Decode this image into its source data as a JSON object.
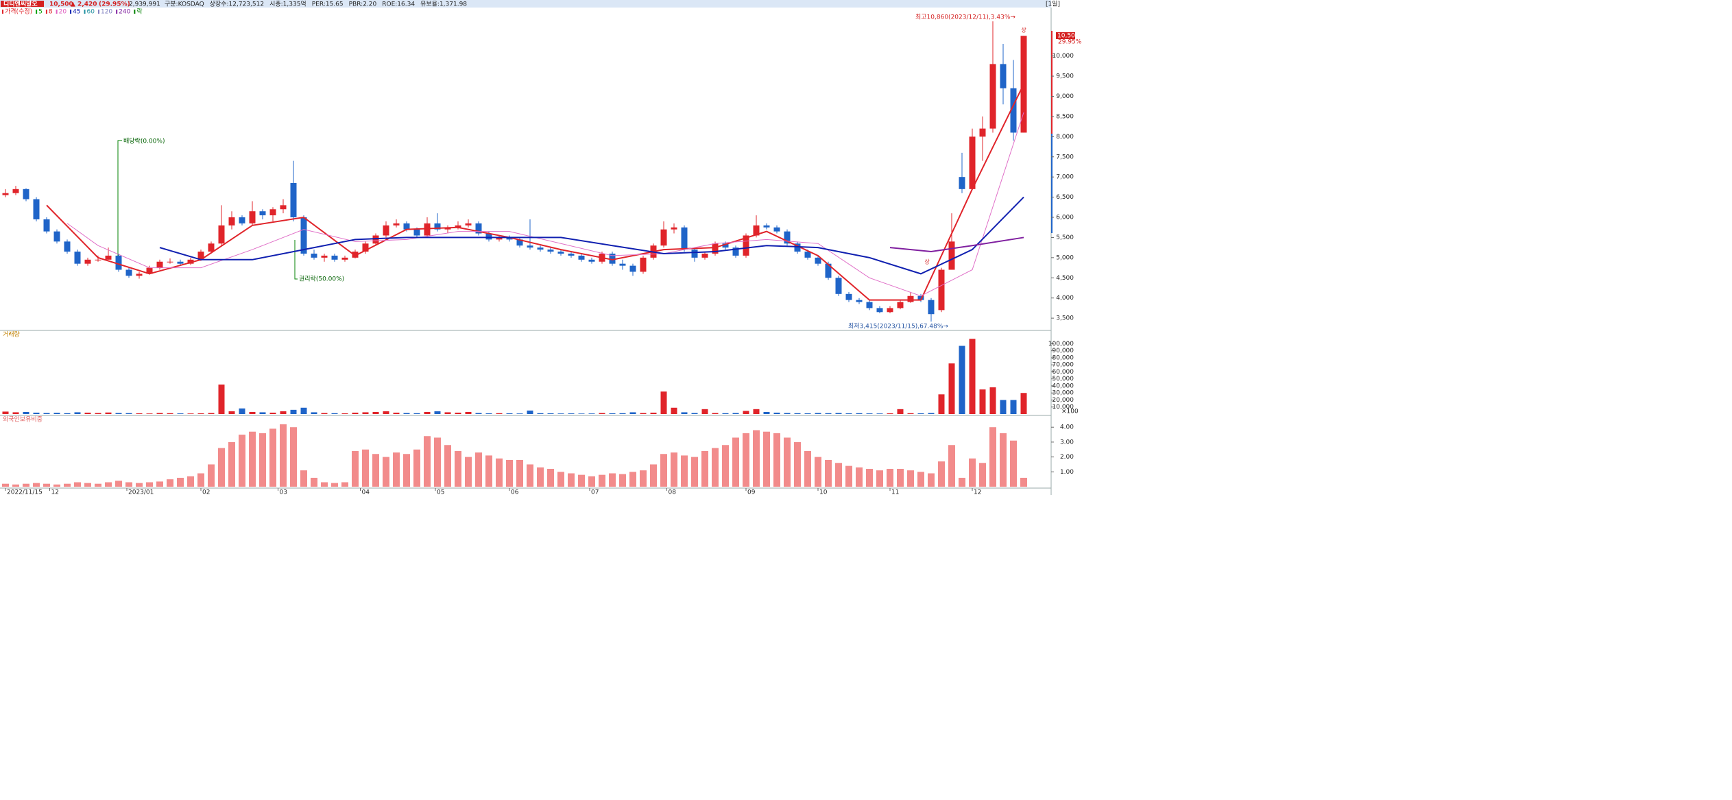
{
  "chart_data": {
    "type": "candlestick",
    "header": {
      "name": "디티앤씨알오",
      "price": "10,500",
      "change": "▲ 2,420",
      "change_pct": "(29.95%)",
      "volume": "2,939,991",
      "items": [
        "구분:KOSDAQ",
        "상장수:12,723,512",
        "시총:1,335억",
        "PER:15.65",
        "PBR:2.20",
        "ROE:16.34",
        "유보율:1,371.98"
      ],
      "period": "[1일]"
    },
    "legend": [
      {
        "name": "가격(수정)",
        "color": "#e0242a"
      },
      {
        "name": "5",
        "color": "#00a000"
      },
      {
        "name": "8",
        "color": "#e0242a"
      },
      {
        "name": "20",
        "color": "#e060c0"
      },
      {
        "name": "45",
        "color": "#1020b0"
      },
      {
        "name": "60",
        "color": "#2090a0"
      },
      {
        "name": "120",
        "color": "#8080c0"
      },
      {
        "name": "240",
        "color": "#8020a0"
      },
      {
        "name": "락",
        "color": "#008000"
      }
    ],
    "up_color": "#e0242a",
    "down_color": "#1f64c8",
    "candles": [
      [
        6550,
        6700,
        6500,
        6600
      ],
      [
        6600,
        6780,
        6550,
        6700
      ],
      [
        6700,
        6720,
        6400,
        6450
      ],
      [
        6450,
        6500,
        5900,
        5950
      ],
      [
        5950,
        6000,
        5600,
        5650
      ],
      [
        5650,
        5700,
        5350,
        5400
      ],
      [
        5400,
        5450,
        5100,
        5150
      ],
      [
        5150,
        5200,
        4800,
        4850
      ],
      [
        4850,
        5000,
        4800,
        4950
      ],
      [
        4950,
        5050,
        4900,
        4950
      ],
      [
        4950,
        5250,
        4950,
        5050
      ],
      [
        5050,
        5100,
        4650,
        4700
      ],
      [
        4700,
        4750,
        4500,
        4550
      ],
      [
        4550,
        4650,
        4480,
        4600
      ],
      [
        4600,
        4800,
        4580,
        4750
      ],
      [
        4750,
        4950,
        4700,
        4900
      ],
      [
        4900,
        4980,
        4850,
        4900
      ],
      [
        4900,
        4950,
        4820,
        4850
      ],
      [
        4850,
        5000,
        4820,
        4950
      ],
      [
        4950,
        5200,
        4920,
        5150
      ],
      [
        5150,
        5400,
        5100,
        5350
      ],
      [
        5350,
        6300,
        5300,
        5800
      ],
      [
        5800,
        6150,
        5700,
        6000
      ],
      [
        6000,
        6050,
        5800,
        5850
      ],
      [
        5850,
        6400,
        5800,
        6150
      ],
      [
        6150,
        6200,
        5950,
        6050
      ],
      [
        6050,
        6250,
        5900,
        6200
      ],
      [
        6200,
        6450,
        6100,
        6300
      ],
      [
        6850,
        7400,
        5900,
        6000
      ],
      [
        6000,
        6050,
        5050,
        5100
      ],
      [
        5100,
        5200,
        4950,
        5000
      ],
      [
        5000,
        5100,
        4900,
        5050
      ],
      [
        5050,
        5100,
        4900,
        4950
      ],
      [
        4950,
        5050,
        4900,
        5000
      ],
      [
        5000,
        5200,
        4980,
        5150
      ],
      [
        5150,
        5400,
        5100,
        5350
      ],
      [
        5350,
        5600,
        5300,
        5550
      ],
      [
        5550,
        5900,
        5500,
        5800
      ],
      [
        5800,
        5950,
        5750,
        5850
      ],
      [
        5850,
        5900,
        5650,
        5700
      ],
      [
        5700,
        5750,
        5500,
        5550
      ],
      [
        5550,
        6000,
        5500,
        5850
      ],
      [
        5850,
        6100,
        5650,
        5700
      ],
      [
        5700,
        5800,
        5600,
        5750
      ],
      [
        5750,
        5900,
        5700,
        5800
      ],
      [
        5800,
        5950,
        5750,
        5850
      ],
      [
        5850,
        5900,
        5550,
        5600
      ],
      [
        5600,
        5650,
        5400,
        5450
      ],
      [
        5450,
        5550,
        5400,
        5500
      ],
      [
        5500,
        5550,
        5400,
        5450
      ],
      [
        5450,
        5500,
        5250,
        5300
      ],
      [
        5300,
        5950,
        5200,
        5250
      ],
      [
        5250,
        5300,
        5150,
        5200
      ],
      [
        5200,
        5250,
        5100,
        5150
      ],
      [
        5150,
        5200,
        5050,
        5100
      ],
      [
        5100,
        5150,
        5000,
        5050
      ],
      [
        5050,
        5100,
        4900,
        4950
      ],
      [
        4950,
        5000,
        4850,
        4900
      ],
      [
        4900,
        5150,
        4850,
        5100
      ],
      [
        5100,
        5150,
        4800,
        4850
      ],
      [
        4850,
        4950,
        4700,
        4800
      ],
      [
        4800,
        4850,
        4550,
        4650
      ],
      [
        4650,
        5050,
        4600,
        5000
      ],
      [
        5000,
        5350,
        4950,
        5300
      ],
      [
        5300,
        5900,
        5250,
        5700
      ],
      [
        5700,
        5850,
        5600,
        5750
      ],
      [
        5750,
        5800,
        5150,
        5200
      ],
      [
        5200,
        5250,
        4900,
        5000
      ],
      [
        5000,
        5150,
        4950,
        5100
      ],
      [
        5100,
        5400,
        5050,
        5350
      ],
      [
        5350,
        5400,
        5200,
        5250
      ],
      [
        5250,
        5300,
        5000,
        5050
      ],
      [
        5050,
        5600,
        5000,
        5550
      ],
      [
        5550,
        6050,
        5500,
        5800
      ],
      [
        5800,
        5850,
        5700,
        5750
      ],
      [
        5750,
        5800,
        5600,
        5650
      ],
      [
        5650,
        5700,
        5300,
        5350
      ],
      [
        5350,
        5400,
        5100,
        5150
      ],
      [
        5150,
        5200,
        4950,
        5000
      ],
      [
        5000,
        5050,
        4800,
        4850
      ],
      [
        4850,
        4900,
        4450,
        4500
      ],
      [
        4500,
        4550,
        4050,
        4100
      ],
      [
        4100,
        4150,
        3900,
        3950
      ],
      [
        3950,
        4000,
        3850,
        3900
      ],
      [
        3900,
        3950,
        3700,
        3750
      ],
      [
        3750,
        3800,
        3620,
        3650
      ],
      [
        3650,
        3800,
        3620,
        3750
      ],
      [
        3750,
        3950,
        3720,
        3900
      ],
      [
        3900,
        4150,
        3880,
        4050
      ],
      [
        4050,
        4100,
        3900,
        3950
      ],
      [
        3950,
        4000,
        3415,
        3600
      ],
      [
        3700,
        4750,
        3650,
        4700
      ],
      [
        4700,
        6100,
        4700,
        5400
      ],
      [
        7000,
        7600,
        6600,
        6700
      ],
      [
        6700,
        8200,
        6700,
        8000
      ],
      [
        8000,
        8500,
        7400,
        8200
      ],
      [
        8200,
        10860,
        8100,
        9800
      ],
      [
        9800,
        10300,
        8800,
        9200
      ],
      [
        9200,
        9900,
        7900,
        8100
      ],
      [
        8100,
        10500,
        8100,
        10500
      ]
    ],
    "moving_averages": [
      {
        "color": "#e0242a",
        "width": 2,
        "x": [
          4,
          9,
          14,
          19,
          24,
          29,
          34,
          39,
          44,
          49,
          54,
          59,
          64,
          69,
          74,
          79,
          84,
          89,
          94,
          99
        ],
        "values": [
          6300,
          5000,
          4600,
          4950,
          5800,
          6000,
          5050,
          5700,
          5750,
          5500,
          5200,
          4950,
          5200,
          5250,
          5650,
          5050,
          3950,
          3950,
          6700,
          9300
        ]
      },
      {
        "color": "#e070c8",
        "width": 1,
        "x": [
          6,
          9,
          14,
          19,
          24,
          29,
          34,
          39,
          44,
          49,
          54,
          59,
          64,
          69,
          74,
          79,
          84,
          89,
          94,
          99
        ],
        "values": [
          5850,
          5300,
          4750,
          4750,
          5200,
          5700,
          5400,
          5450,
          5650,
          5650,
          5350,
          5050,
          5100,
          5350,
          5450,
          5350,
          4500,
          4050,
          4700,
          8600
        ]
      },
      {
        "color": "#1020b0",
        "width": 2,
        "x": [
          15,
          19,
          24,
          29,
          34,
          39,
          44,
          49,
          54,
          59,
          64,
          69,
          74,
          79,
          84,
          89,
          94,
          99
        ],
        "values": [
          5250,
          4950,
          4950,
          5200,
          5450,
          5500,
          5500,
          5500,
          5500,
          5300,
          5100,
          5150,
          5300,
          5250,
          5000,
          4600,
          5200,
          6500
        ]
      },
      {
        "color": "#8020a0",
        "width": 2,
        "x": [
          86,
          90,
          94,
          99
        ],
        "values": [
          5250,
          5150,
          5300,
          5500
        ]
      }
    ],
    "ylim": [
      3230,
      11150
    ],
    "yticks": [
      {
        "value": 3500,
        "label": "3,500"
      },
      {
        "value": 4000,
        "label": "4,000"
      },
      {
        "value": 4500,
        "label": "4,500"
      },
      {
        "value": 5000,
        "label": "5,000"
      },
      {
        "value": 5500,
        "label": "5,500"
      },
      {
        "value": 6000,
        "label": "6,000"
      },
      {
        "value": 6500,
        "label": "6,500"
      },
      {
        "value": 7000,
        "label": "7,000"
      },
      {
        "value": 7500,
        "label": "7,500"
      },
      {
        "value": 8000,
        "label": "8,000"
      },
      {
        "value": 8500,
        "label": "8,500"
      },
      {
        "value": 9000,
        "label": "9,000"
      },
      {
        "value": 9500,
        "label": "9,500"
      },
      {
        "value": 10000,
        "label": "10,000"
      }
    ],
    "last_price_label": "10,500",
    "last_change_label": "29.95%",
    "annotations": {
      "high": "최고10,860(2023/12/11),3.43%→",
      "low": "최저3,415(2023/11/15),67.48%→",
      "dividend": "배당락(0.00%)",
      "rights": "권리락(50.00%)",
      "limit_up": "상"
    },
    "volume": {
      "title": "거래량",
      "unit": "×100",
      "ylim": [
        0,
        117000
      ],
      "yticks": [
        {
          "value": 10000,
          "label": "10,000"
        },
        {
          "value": 20000,
          "label": "20,000"
        },
        {
          "value": 30000,
          "label": "30,000"
        },
        {
          "value": 40000,
          "label": "40,000"
        },
        {
          "value": 50000,
          "label": "50,000"
        },
        {
          "value": 60000,
          "label": "60,000"
        },
        {
          "value": 70000,
          "label": "70,000"
        },
        {
          "value": 80000,
          "label": "80,000"
        },
        {
          "value": 90000,
          "label": "90,000"
        },
        {
          "value": 100000,
          "label": "100,000"
        }
      ],
      "values": [
        3500,
        2500,
        3000,
        2000,
        1500,
        1800,
        1200,
        2500,
        2000,
        1500,
        2200,
        1500,
        1300,
        1000,
        800,
        1500,
        1200,
        900,
        800,
        1000,
        1500,
        42000,
        4000,
        8000,
        3000,
        2500,
        2000,
        4000,
        6000,
        9000,
        2500,
        1500,
        1200,
        1000,
        2000,
        2500,
        3000,
        4000,
        2000,
        1500,
        1200,
        3000,
        4000,
        2500,
        2000,
        3000,
        1500,
        1000,
        1200,
        1000,
        800,
        5000,
        1200,
        1000,
        800,
        900,
        700,
        800,
        1500,
        1000,
        1200,
        2500,
        1500,
        2000,
        32000,
        9000,
        2500,
        1500,
        7000,
        1500,
        1200,
        1500,
        4500,
        7000,
        3000,
        2000,
        1500,
        1200,
        1000,
        1500,
        1200,
        1500,
        1000,
        1200,
        900,
        800,
        1000,
        7000,
        1200,
        1000,
        1500,
        28000,
        72000,
        97000,
        107000,
        35000,
        38000,
        20000,
        20000,
        30000
      ]
    },
    "foreign": {
      "title": "외국인보유비중",
      "color": "#f28b8b",
      "ylim": [
        0,
        4.7
      ],
      "yticks": [
        {
          "value": 1,
          "label": "1.00"
        },
        {
          "value": 2,
          "label": "2.00"
        },
        {
          "value": 3,
          "label": "3.00"
        },
        {
          "value": 4,
          "label": "4.00"
        }
      ],
      "values": [
        0.2,
        0.15,
        0.2,
        0.25,
        0.2,
        0.15,
        0.2,
        0.3,
        0.25,
        0.2,
        0.3,
        0.4,
        0.3,
        0.25,
        0.3,
        0.35,
        0.5,
        0.6,
        0.7,
        0.9,
        1.5,
        2.6,
        3.0,
        3.5,
        3.7,
        3.6,
        3.9,
        4.2,
        4.0,
        1.1,
        0.6,
        0.3,
        0.25,
        0.3,
        2.4,
        2.5,
        2.2,
        2.0,
        2.3,
        2.2,
        2.5,
        3.4,
        3.3,
        2.8,
        2.4,
        2.0,
        2.3,
        2.1,
        1.9,
        1.8,
        1.8,
        1.5,
        1.3,
        1.2,
        1.0,
        0.9,
        0.8,
        0.7,
        0.8,
        0.9,
        0.85,
        1.0,
        1.1,
        1.5,
        2.2,
        2.3,
        2.1,
        2.0,
        2.4,
        2.6,
        2.8,
        3.3,
        3.6,
        3.8,
        3.7,
        3.6,
        3.3,
        3.0,
        2.4,
        2.0,
        1.8,
        1.6,
        1.4,
        1.3,
        1.2,
        1.1,
        1.2,
        1.2,
        1.1,
        1.0,
        0.9,
        1.7,
        2.8,
        0.6,
        1.9,
        1.6,
        4.0,
        3.6,
        3.1,
        0.6
      ]
    },
    "xticks": [
      {
        "value": 0,
        "label": "2022/11/15"
      },
      {
        "value": 4.3,
        "label": "12"
      },
      {
        "value": 11.8,
        "label": "2023/01"
      },
      {
        "value": 19,
        "label": "02"
      },
      {
        "value": 26.5,
        "label": "03"
      },
      {
        "value": 34.5,
        "label": "04"
      },
      {
        "value": 41.8,
        "label": "05"
      },
      {
        "value": 49,
        "label": "06"
      },
      {
        "value": 56.8,
        "label": "07"
      },
      {
        "value": 64.3,
        "label": "08"
      },
      {
        "value": 72,
        "label": "09"
      },
      {
        "value": 79,
        "label": "10"
      },
      {
        "value": 86,
        "label": "11"
      },
      {
        "value": 94,
        "label": "12"
      }
    ]
  }
}
